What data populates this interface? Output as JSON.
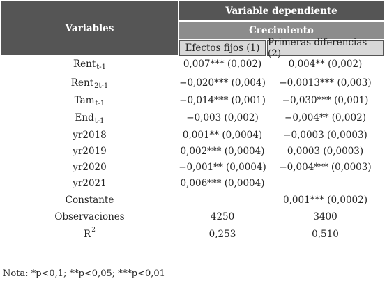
{
  "header": {
    "variables": "Variables",
    "dependent": "Variable dependiente",
    "growth": "Crecimiento",
    "col1": "Efectos fijos (1)",
    "col2": "Primeras diferencias (2)"
  },
  "rows": [
    {
      "var": "Rent",
      "sub": "t-1",
      "sup": "",
      "c1": "0,007*** (0,002)",
      "c2": "0,004** (0,002)"
    },
    {
      "var": "Rent",
      "sub": "2t-1",
      "sup": "",
      "c1": "−0,020*** (0,004)",
      "c2": "−0,0013*** (0,003)"
    },
    {
      "var": "Tam",
      "sub": "t-1",
      "sup": "",
      "c1": "−0,014*** (0,001)",
      "c2": "−0,030*** (0,001)"
    },
    {
      "var": "End",
      "sub": "t-1",
      "sup": "",
      "c1": "−0,003 (0,002)",
      "c2": "−0,004** (0,002)"
    },
    {
      "var": "yr2018",
      "sub": "",
      "sup": "",
      "c1": "0,001** (0,0004)",
      "c2": "−0,0003 (0,0003)"
    },
    {
      "var": "yr2019",
      "sub": "",
      "sup": "",
      "c1": "0,002*** (0,0004)",
      "c2": "0,0003 (0,0003)"
    },
    {
      "var": "yr2020",
      "sub": "",
      "sup": "",
      "c1": "−0,001** (0,0004)",
      "c2": "−0,004*** (0,0003)"
    },
    {
      "var": "yr2021",
      "sub": "",
      "sup": "",
      "c1": "0,006*** (0,0004)",
      "c2": ""
    },
    {
      "var": "Constante",
      "sub": "",
      "sup": "",
      "c1": "",
      "c2": "0,001*** (0,0002)"
    },
    {
      "var": "Observaciones",
      "sub": "",
      "sup": "",
      "c1": "4250",
      "c2": "3400"
    },
    {
      "var": "R",
      "sub": "",
      "sup": "2",
      "c1": "0,253",
      "c2": "0,510"
    }
  ],
  "note": "Nota: *p<0,1; **p<0,05; ***p<0,01"
}
